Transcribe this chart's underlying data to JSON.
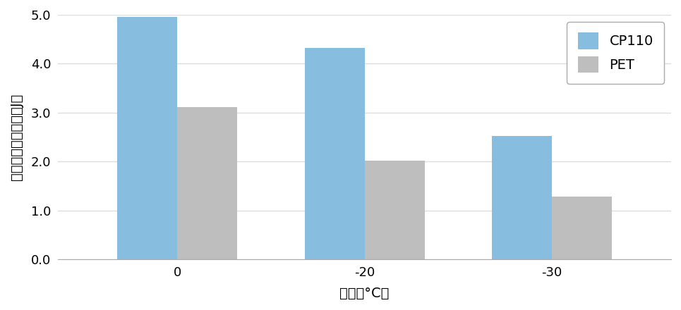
{
  "categories": [
    "0",
    "-20",
    "-30"
  ],
  "cp110_values": [
    4.95,
    4.32,
    2.52
  ],
  "pet_values": [
    3.11,
    2.02,
    1.29
  ],
  "cp110_color": "#87BEDF",
  "pet_color": "#BEBEBE",
  "xlabel": "湿度（°C）",
  "ylabel": "デュポン衝撃強度（J）",
  "ylim": [
    0.0,
    5.0
  ],
  "ytick_labels": [
    "0.0",
    "1.0",
    "2.0",
    "3.0",
    "4.0",
    "5.0"
  ],
  "ytick_values": [
    0.0,
    1.0,
    2.0,
    3.0,
    4.0,
    5.0
  ],
  "legend_labels": [
    "CP110",
    "PET"
  ],
  "bar_width": 0.32,
  "background_color": "#ffffff",
  "grid_color": "#dddddd",
  "tick_fontsize": 13,
  "label_fontsize": 14,
  "legend_fontsize": 14
}
